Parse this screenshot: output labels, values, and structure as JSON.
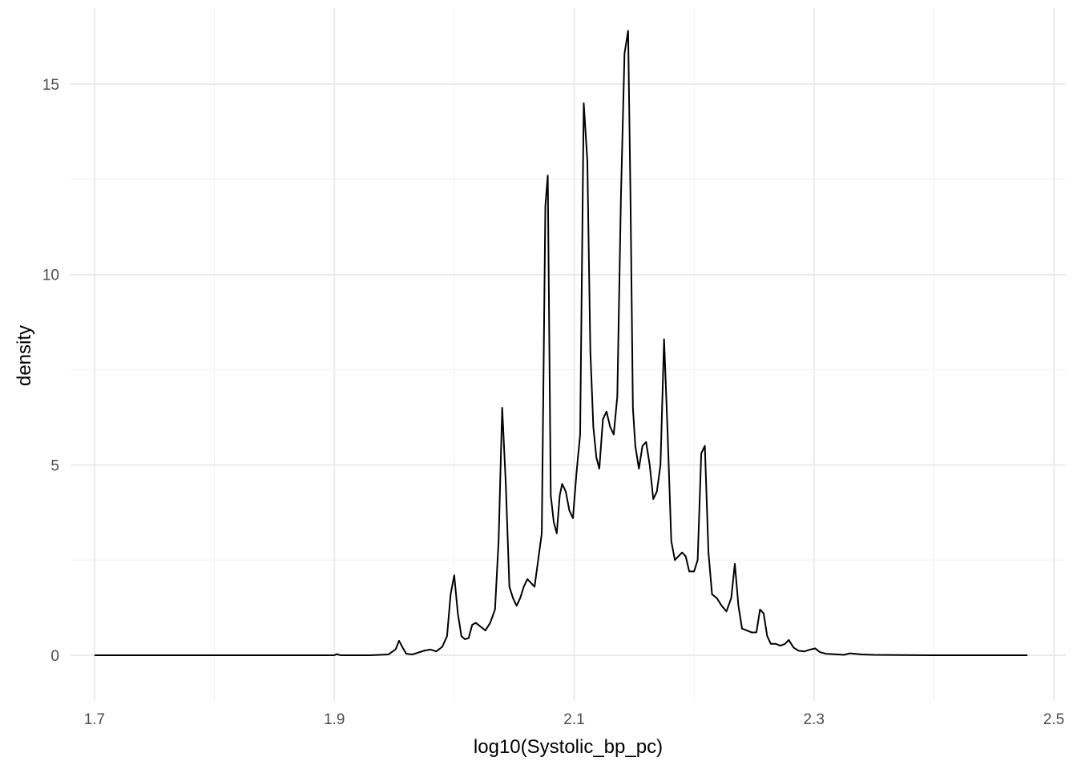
{
  "chart_data": {
    "type": "line",
    "xlabel": "log10(Systolic_bp_pc)",
    "ylabel": "density",
    "xlim": [
      1.68,
      2.51
    ],
    "ylim": [
      -1.2,
      17.0
    ],
    "x_ticks": [
      1.7,
      1.9,
      2.1,
      2.3,
      2.5
    ],
    "x_tick_labels": [
      "1.7",
      "1.9",
      "2.1",
      "2.3",
      "2.5"
    ],
    "y_ticks": [
      0,
      5,
      10,
      15
    ],
    "y_tick_labels": [
      "0",
      "5",
      "10",
      "15"
    ],
    "grid": true,
    "line_color": "#000000",
    "grid_major_color": "#ebebeb",
    "grid_minor_color": "#f3f3f3",
    "series": [
      {
        "x": [
          1.7,
          1.8,
          1.9,
          1.902,
          1.905,
          1.93,
          1.945,
          1.951,
          1.954,
          1.957,
          1.96,
          1.965,
          1.975,
          1.98,
          1.985,
          1.99,
          1.994,
          1.997,
          2.0,
          2.003,
          2.006,
          2.009,
          2.012,
          2.015,
          2.018,
          2.022,
          2.026,
          2.03,
          2.034,
          2.037,
          2.04,
          2.043,
          2.046,
          2.049,
          2.052,
          2.055,
          2.058,
          2.061,
          2.064,
          2.067,
          2.07,
          2.073,
          2.076,
          2.078,
          2.0805,
          2.083,
          2.0855,
          2.088,
          2.09,
          2.093,
          2.096,
          2.099,
          2.102,
          2.105,
          2.108,
          2.111,
          2.1135,
          2.116,
          2.1185,
          2.121,
          2.124,
          2.127,
          2.13,
          2.133,
          2.136,
          2.139,
          2.142,
          2.145,
          2.147,
          2.149,
          2.151,
          2.154,
          2.157,
          2.16,
          2.163,
          2.166,
          2.169,
          2.172,
          2.175,
          2.178,
          2.181,
          2.184,
          2.187,
          2.19,
          2.193,
          2.196,
          2.2,
          2.203,
          2.206,
          2.209,
          2.212,
          2.215,
          2.219,
          2.223,
          2.227,
          2.231,
          2.234,
          2.237,
          2.24,
          2.244,
          2.248,
          2.252,
          2.255,
          2.258,
          2.261,
          2.264,
          2.268,
          2.272,
          2.276,
          2.279,
          2.283,
          2.287,
          2.292,
          2.297,
          2.301,
          2.305,
          2.31,
          2.32,
          2.325,
          2.33,
          2.34,
          2.35,
          2.4,
          2.45,
          2.478
        ],
        "y": [
          0,
          0,
          0,
          0.03,
          0,
          0,
          0.02,
          0.15,
          0.38,
          0.2,
          0.04,
          0.02,
          0.12,
          0.15,
          0.1,
          0.22,
          0.5,
          1.6,
          2.1,
          1.1,
          0.5,
          0.42,
          0.45,
          0.8,
          0.85,
          0.75,
          0.65,
          0.85,
          1.2,
          3.0,
          6.5,
          4.5,
          1.8,
          1.5,
          1.3,
          1.5,
          1.8,
          2.0,
          1.9,
          1.8,
          2.5,
          3.2,
          11.8,
          12.6,
          4.2,
          3.5,
          3.2,
          4.2,
          4.5,
          4.3,
          3.8,
          3.6,
          4.8,
          5.8,
          14.5,
          13.0,
          8.0,
          6.0,
          5.2,
          4.9,
          6.2,
          6.4,
          6.0,
          5.8,
          6.8,
          12.0,
          15.8,
          16.4,
          12.0,
          6.5,
          5.5,
          4.9,
          5.5,
          5.6,
          5.0,
          4.1,
          4.3,
          5.0,
          8.3,
          5.8,
          3.0,
          2.5,
          2.6,
          2.7,
          2.6,
          2.2,
          2.2,
          2.5,
          5.3,
          5.5,
          2.7,
          1.6,
          1.5,
          1.3,
          1.15,
          1.5,
          2.4,
          1.3,
          0.7,
          0.65,
          0.6,
          0.6,
          1.2,
          1.1,
          0.5,
          0.3,
          0.3,
          0.25,
          0.3,
          0.4,
          0.2,
          0.12,
          0.1,
          0.15,
          0.18,
          0.08,
          0.04,
          0.02,
          0.01,
          0.05,
          0.02,
          0.01,
          0,
          0,
          0
        ]
      }
    ]
  }
}
